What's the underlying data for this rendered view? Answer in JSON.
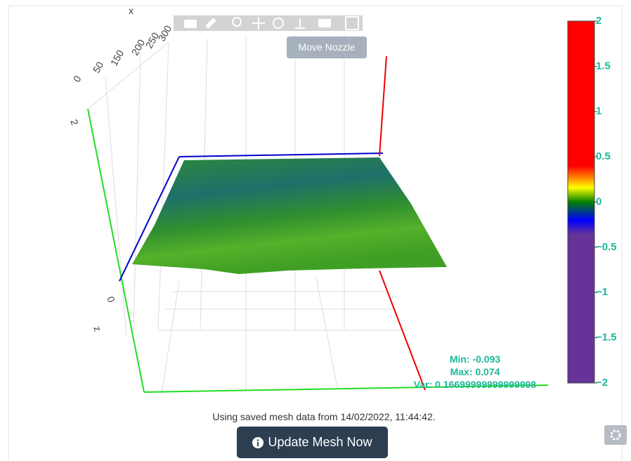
{
  "toolbar": {
    "tooltip": "Move Nozzle"
  },
  "plot": {
    "x_axis": {
      "title": "x",
      "ticks": [
        "0",
        "50",
        "150",
        "200",
        "250",
        "300"
      ]
    },
    "z_axis": {
      "title": "z",
      "ticks": [
        "2",
        "0"
      ]
    },
    "colorbar": {
      "lim": [
        -2,
        2
      ],
      "ticks": [
        2,
        1.5,
        1,
        0.5,
        0,
        {
          "value": -0.5,
          "label": "−0.5"
        },
        {
          "value": -1,
          "label": "−1"
        },
        {
          "value": -1.5,
          "label": "−1.5"
        },
        {
          "value": -2,
          "label": "−2"
        }
      ]
    },
    "stats": [
      "Min: -0.093",
      "Max: 0.074",
      "Var: 0.16699999999999998"
    ]
  },
  "message": "Using saved mesh data from 14/02/2022, 11:44:42.",
  "button": "Update Mesh Now"
}
